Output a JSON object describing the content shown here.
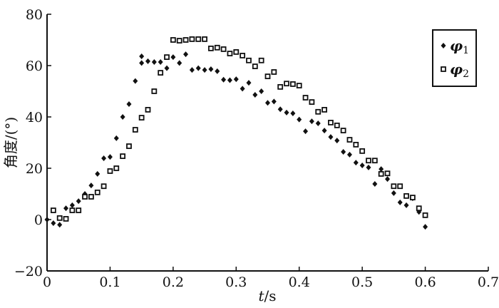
{
  "chart_data": {
    "type": "scatter",
    "title": "",
    "xlabel_italic": "t",
    "xlabel_rest": "/s",
    "ylabel": "角度/(°)",
    "xlim": [
      0,
      0.7
    ],
    "ylim": [
      -20,
      80
    ],
    "xticks": [
      "0",
      "0.1",
      "0.2",
      "0.3",
      "0.4",
      "0.5",
      "0.6",
      "0.7"
    ],
    "yticks": [
      "-20",
      "0",
      "20",
      "40",
      "60",
      "80"
    ],
    "grid": false,
    "legend_position": "top-right",
    "series": [
      {
        "name": "φ1",
        "marker": "filled-diamond",
        "color": "#111111",
        "x": [
          0,
          0.01,
          0.02,
          0.03,
          0.04,
          0.05,
          0.06,
          0.07,
          0.08,
          0.09,
          0.1,
          0.11,
          0.12,
          0.13,
          0.14,
          0.15,
          0.15,
          0.16,
          0.17,
          0.18,
          0.19,
          0.2,
          0.21,
          0.22,
          0.23,
          0.24,
          0.25,
          0.26,
          0.27,
          0.28,
          0.29,
          0.3,
          0.31,
          0.32,
          0.33,
          0.34,
          0.35,
          0.36,
          0.37,
          0.38,
          0.39,
          0.4,
          0.41,
          0.42,
          0.43,
          0.44,
          0.45,
          0.46,
          0.47,
          0.48,
          0.49,
          0.5,
          0.51,
          0.52,
          0.53,
          0.54,
          0.55,
          0.56,
          0.57,
          0.58,
          0.59,
          0.6
        ],
        "y": [
          0,
          -1.4,
          -2,
          4.4,
          5.6,
          7.2,
          10,
          13.3,
          17.8,
          23.9,
          24.4,
          31.7,
          40,
          45,
          54,
          63.6,
          61,
          61.7,
          61.4,
          61.4,
          59,
          63.3,
          61,
          64.4,
          58.3,
          59,
          58.3,
          58.6,
          57.8,
          54.5,
          54.3,
          54.7,
          51,
          53.3,
          48.6,
          50,
          45.5,
          46,
          43,
          41.7,
          41.4,
          39,
          34.4,
          38.3,
          37.5,
          34.7,
          32.2,
          30.8,
          26.4,
          25.3,
          22.2,
          21.1,
          20.3,
          13.9,
          19.7,
          15.8,
          10.3,
          6.7,
          5.6,
          8.3,
          3,
          -2.8
        ]
      },
      {
        "name": "φ2",
        "marker": "open-square",
        "color": "#111111",
        "x": [
          0.01,
          0.02,
          0.03,
          0.04,
          0.05,
          0.06,
          0.07,
          0.08,
          0.09,
          0.1,
          0.11,
          0.12,
          0.13,
          0.14,
          0.15,
          0.16,
          0.17,
          0.18,
          0.19,
          0.2,
          0.21,
          0.22,
          0.23,
          0.24,
          0.25,
          0.26,
          0.27,
          0.28,
          0.29,
          0.3,
          0.31,
          0.32,
          0.33,
          0.34,
          0.35,
          0.36,
          0.37,
          0.38,
          0.39,
          0.4,
          0.41,
          0.42,
          0.43,
          0.44,
          0.45,
          0.46,
          0.47,
          0.48,
          0.49,
          0.5,
          0.51,
          0.52,
          0.53,
          0.54,
          0.55,
          0.56,
          0.57,
          0.58,
          0.59,
          0.6
        ],
        "y": [
          3.6,
          0.6,
          0.3,
          3.6,
          3.6,
          8.9,
          8.9,
          10.6,
          13,
          18.9,
          20,
          24.7,
          28.6,
          35,
          39.7,
          42.8,
          50,
          57.2,
          63.3,
          70,
          69.7,
          70,
          70.3,
          70.3,
          70.3,
          66.7,
          67,
          66.4,
          64.7,
          65.3,
          63.9,
          62,
          59.7,
          62,
          55.8,
          57.5,
          51.7,
          53,
          52.8,
          52.2,
          47.5,
          45.8,
          42,
          42.8,
          37.8,
          36.7,
          34.7,
          31.1,
          29.2,
          26.7,
          23,
          23,
          17.8,
          18,
          13,
          13,
          9.2,
          8.6,
          4.4,
          1.7
        ]
      }
    ],
    "legend": [
      {
        "symbol": "φ",
        "sub": "1"
      },
      {
        "symbol": "φ",
        "sub": "2"
      }
    ]
  }
}
